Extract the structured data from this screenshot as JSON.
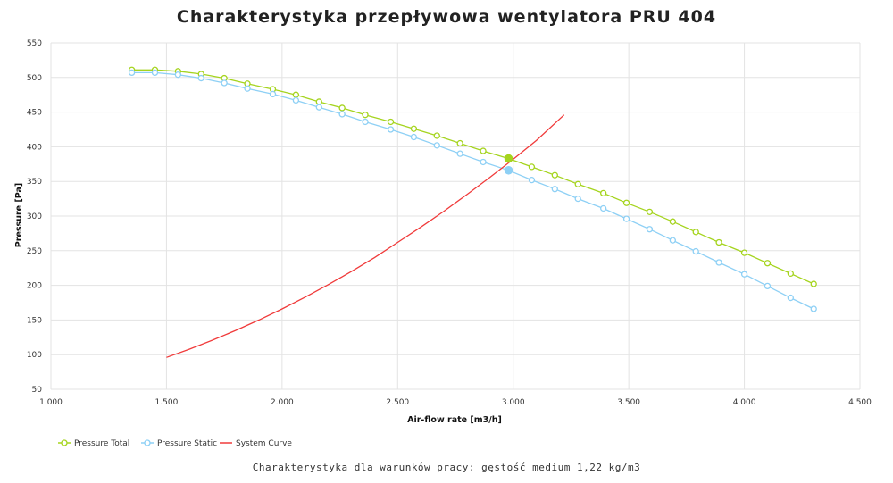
{
  "chart_data": {
    "type": "line",
    "title": "Charakterystyka przepływowa wentylatora PRU 404",
    "subtitle": "Charakterystyka dla warunków pracy: gęstość medium 1,22 kg/m3",
    "xlabel": "Air-flow rate [m3/h]",
    "ylabel": "Pressure [Pa]",
    "xlim": [
      1000,
      4500
    ],
    "ylim": [
      50,
      550
    ],
    "x_ticks": [
      "1.000",
      "1.500",
      "2.000",
      "2.500",
      "3.000",
      "3.500",
      "4.000",
      "4.500"
    ],
    "x_tick_values": [
      1000,
      1500,
      2000,
      2500,
      3000,
      3500,
      4000,
      4500
    ],
    "y_ticks": [
      550,
      500,
      450,
      400,
      350,
      300,
      250,
      200,
      150,
      100,
      50
    ],
    "grid": true,
    "legend_position": "bottom-left",
    "series": [
      {
        "name": "Pressure Total",
        "color": "#a5d41e",
        "marker": "circle-open",
        "x": [
          1350,
          1450,
          1550,
          1650,
          1750,
          1850,
          1960,
          2060,
          2160,
          2260,
          2360,
          2470,
          2570,
          2670,
          2770,
          2870,
          2980,
          3080,
          3180,
          3280,
          3390,
          3490,
          3590,
          3690,
          3790,
          3890,
          4000,
          4100,
          4200,
          4300
        ],
        "y": [
          511,
          511,
          509,
          505,
          499,
          491,
          483,
          475,
          465,
          456,
          446,
          436,
          426,
          416,
          405,
          394,
          383,
          371,
          359,
          346,
          333,
          319,
          306,
          292,
          277,
          262,
          247,
          232,
          217,
          202
        ]
      },
      {
        "name": "Pressure Static",
        "color": "#8ed0f5",
        "marker": "circle-open",
        "x": [
          1350,
          1450,
          1550,
          1650,
          1750,
          1850,
          1960,
          2060,
          2160,
          2260,
          2360,
          2470,
          2570,
          2670,
          2770,
          2870,
          2980,
          3080,
          3180,
          3280,
          3390,
          3490,
          3590,
          3690,
          3790,
          3890,
          4000,
          4100,
          4200,
          4300
        ],
        "y": [
          507,
          507,
          504,
          499,
          492,
          484,
          476,
          467,
          457,
          447,
          436,
          425,
          414,
          402,
          390,
          378,
          366,
          352,
          339,
          325,
          311,
          296,
          281,
          265,
          249,
          233,
          216,
          199,
          182,
          166
        ]
      },
      {
        "name": "System Curve",
        "color": "#f03a3a",
        "marker": "none",
        "x": [
          1500,
          1600,
          1700,
          1800,
          1900,
          2000,
          2100,
          2200,
          2300,
          2400,
          2500,
          2600,
          2700,
          2800,
          2900,
          3000,
          3100,
          3220
        ],
        "y": [
          96,
          108,
          121,
          135,
          150,
          166,
          183,
          201,
          220,
          240,
          262,
          284,
          307,
          331,
          356,
          382,
          409,
          446
        ]
      }
    ],
    "operating_points": [
      {
        "series": "Pressure Total",
        "x": 2980,
        "y": 383,
        "color": "#a5d41e"
      },
      {
        "series": "Pressure Static",
        "x": 2980,
        "y": 366,
        "color": "#8ed0f5"
      }
    ]
  }
}
